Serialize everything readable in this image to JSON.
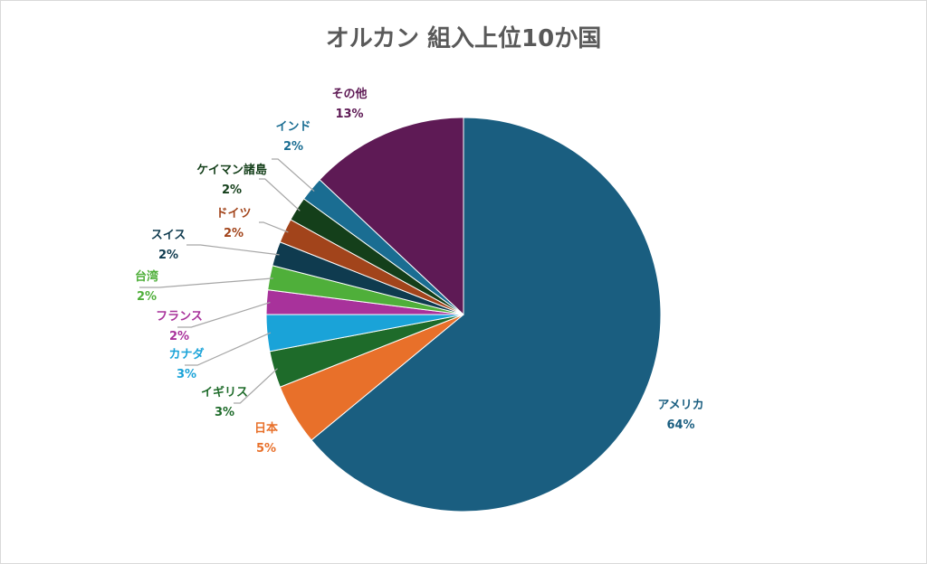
{
  "chart_data": {
    "type": "pie",
    "title": "オルカン 組入上位10か国",
    "slices": [
      {
        "label": "アメリカ",
        "value": 64,
        "pct_text": "64%",
        "color": "#1a5e80"
      },
      {
        "label": "日本",
        "value": 5,
        "pct_text": "5%",
        "color": "#e8702a"
      },
      {
        "label": "イギリス",
        "value": 3,
        "pct_text": "3%",
        "color": "#1e6b2a"
      },
      {
        "label": "カナダ",
        "value": 3,
        "pct_text": "3%",
        "color": "#1aa3d8"
      },
      {
        "label": "フランス",
        "value": 2,
        "pct_text": "2%",
        "color": "#a8329b"
      },
      {
        "label": "台湾",
        "value": 2,
        "pct_text": "2%",
        "color": "#4faf3a"
      },
      {
        "label": "スイス",
        "value": 2,
        "pct_text": "2%",
        "color": "#0f3b4f"
      },
      {
        "label": "ドイツ",
        "value": 2,
        "pct_text": "2%",
        "color": "#a2441b"
      },
      {
        "label": "ケイマン諸島",
        "value": 2,
        "pct_text": "2%",
        "color": "#143f1a"
      },
      {
        "label": "インド",
        "value": 2,
        "pct_text": "2%",
        "color": "#1a6d92"
      },
      {
        "label": "その他",
        "value": 13,
        "pct_text": "13%",
        "color": "#5e1a55"
      }
    ]
  }
}
